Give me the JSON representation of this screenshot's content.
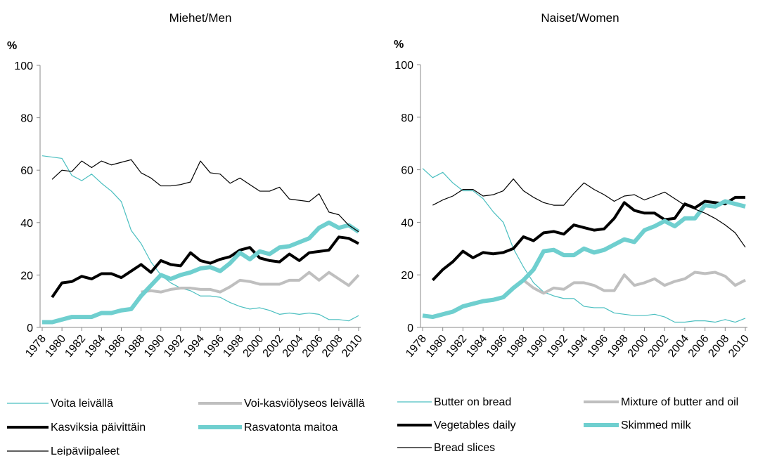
{
  "chart_data": [
    {
      "type": "line",
      "title": "Miehet/Men",
      "y_label": "%",
      "x": [
        1978,
        1979,
        1980,
        1981,
        1982,
        1983,
        1984,
        1985,
        1986,
        1987,
        1988,
        1989,
        1990,
        1991,
        1992,
        1993,
        1994,
        1995,
        1996,
        1997,
        1998,
        1999,
        2000,
        2001,
        2002,
        2003,
        2004,
        2005,
        2006,
        2007,
        2008,
        2009,
        2010
      ],
      "xlim": [
        1978,
        2010
      ],
      "xticks": [
        1978,
        1980,
        1982,
        1984,
        1986,
        1988,
        1990,
        1992,
        1994,
        1996,
        1998,
        2000,
        2002,
        2004,
        2006,
        2008,
        2010
      ],
      "ylim": [
        0,
        100
      ],
      "yticks": [
        0,
        20,
        40,
        60,
        80,
        100
      ],
      "grid": false,
      "series": [
        {
          "name": "Voita leivällä",
          "color": "#4bbfc0",
          "line_width": 1.2,
          "values": [
            65.5,
            65,
            64.5,
            58,
            56,
            58.5,
            55,
            52,
            48,
            37,
            32,
            25,
            20,
            17,
            15,
            14,
            12,
            12,
            11.5,
            9.5,
            8,
            7,
            7.5,
            6.5,
            5,
            5.5,
            5,
            5.5,
            5,
            3,
            3,
            2.5,
            4.5
          ]
        },
        {
          "name": "Voi-kasviölyseos leivällä",
          "color": "#bfbfbf",
          "line_width": 4,
          "values": [
            null,
            null,
            null,
            null,
            null,
            null,
            null,
            null,
            null,
            null,
            13.5,
            14,
            13.5,
            14.5,
            15,
            15,
            14.5,
            14.5,
            13.5,
            15.5,
            18,
            17.5,
            16.5,
            16.5,
            16.5,
            18,
            18,
            21,
            18,
            21,
            18.5,
            16,
            20
          ]
        },
        {
          "name": "Kasviksia  päivittäin",
          "color": "#000000",
          "line_width": 4,
          "values": [
            null,
            11.5,
            17,
            17.5,
            19.5,
            18.5,
            20.5,
            20.5,
            19,
            21.5,
            24,
            21,
            25.5,
            24,
            23.5,
            28.5,
            25.5,
            24.5,
            26,
            27,
            29.5,
            30.5,
            26.5,
            25.5,
            25,
            28,
            25.5,
            28.5,
            29,
            29.5,
            34.5,
            34,
            32
          ]
        },
        {
          "name": "Rasvatonta maitoa",
          "color": "#6fcfcf",
          "line_width": 6,
          "values": [
            2,
            2,
            3,
            4,
            4,
            4,
            5.5,
            5.5,
            6.5,
            7,
            12,
            16,
            20,
            18.5,
            20,
            21,
            22.5,
            23,
            21.5,
            24.5,
            28.5,
            26,
            29,
            28,
            30.5,
            31,
            32.5,
            34,
            38,
            40,
            38,
            39,
            36.5
          ]
        },
        {
          "name": "Leipäviipaleet",
          "color": "#000000",
          "line_width": 1.2,
          "values": [
            null,
            56.5,
            60,
            59.5,
            63.5,
            61,
            63.5,
            62,
            63,
            64,
            59,
            57,
            54,
            54,
            54.5,
            55.5,
            63.5,
            59,
            58.5,
            55,
            57,
            54.5,
            52,
            52,
            53.5,
            49,
            48.5,
            48,
            51,
            44,
            43,
            39,
            36.5
          ]
        }
      ]
    },
    {
      "type": "line",
      "title": "Naiset/Women",
      "y_label": "%",
      "x": [
        1978,
        1979,
        1980,
        1981,
        1982,
        1983,
        1984,
        1985,
        1986,
        1987,
        1988,
        1989,
        1990,
        1991,
        1992,
        1993,
        1994,
        1995,
        1996,
        1997,
        1998,
        1999,
        2000,
        2001,
        2002,
        2003,
        2004,
        2005,
        2006,
        2007,
        2008,
        2009,
        2010
      ],
      "xlim": [
        1978,
        2010
      ],
      "xticks": [
        1978,
        1980,
        1982,
        1984,
        1986,
        1988,
        1990,
        1992,
        1994,
        1996,
        1998,
        2000,
        2002,
        2004,
        2006,
        2008,
        2010
      ],
      "ylim": [
        0,
        100
      ],
      "yticks": [
        0,
        20,
        40,
        60,
        80,
        100
      ],
      "grid": false,
      "series": [
        {
          "name": "Butter on bread",
          "color": "#4bbfc0",
          "line_width": 1.2,
          "values": [
            60.5,
            57,
            59,
            55,
            52,
            52,
            49,
            44,
            40,
            30,
            23,
            17,
            13.5,
            12,
            11,
            11,
            8,
            7.5,
            7.5,
            5.5,
            5,
            4.5,
            4.5,
            5,
            4,
            2,
            2,
            2.5,
            2.5,
            2,
            3,
            2,
            3.5
          ]
        },
        {
          "name": "Mixture of butter and oil",
          "color": "#bfbfbf",
          "line_width": 4,
          "values": [
            null,
            null,
            null,
            null,
            null,
            null,
            null,
            null,
            null,
            null,
            18,
            15,
            13,
            15,
            14.5,
            17,
            17,
            16,
            14,
            14,
            20,
            16,
            17,
            18.5,
            16,
            17.5,
            18.5,
            21,
            20.5,
            21,
            19.5,
            16,
            18
          ]
        },
        {
          "name": "Vegetables daily",
          "color": "#000000",
          "line_width": 4,
          "values": [
            null,
            18,
            22,
            25,
            29,
            26.5,
            28.5,
            28,
            28.5,
            30,
            34.5,
            33,
            36,
            36.5,
            35.5,
            39,
            38,
            37,
            37.5,
            41.5,
            47.5,
            44.5,
            43.5,
            43.5,
            41,
            41.5,
            47,
            45.5,
            48,
            47.5,
            47,
            49.5,
            49.5
          ]
        },
        {
          "name": "Skimmed milk",
          "color": "#6fcfcf",
          "line_width": 6,
          "values": [
            4.5,
            4,
            5,
            6,
            8,
            9,
            10,
            10.5,
            11.5,
            15,
            18,
            22,
            29,
            29.5,
            27.5,
            27.5,
            30,
            28.5,
            29.5,
            31.5,
            33.5,
            32.5,
            37,
            38.5,
            40.5,
            38.5,
            41.5,
            41.5,
            46.5,
            46,
            48,
            47,
            46
          ]
        },
        {
          "name": "Bread slices",
          "color": "#000000",
          "line_width": 1.2,
          "values": [
            null,
            46.5,
            48.5,
            50,
            52.5,
            52.5,
            50,
            50.5,
            52,
            56.5,
            52,
            49.5,
            47.5,
            46.5,
            46.5,
            51,
            55,
            52.5,
            50.5,
            48,
            50,
            50.5,
            48.5,
            50,
            51.5,
            49,
            46.5,
            45,
            43.5,
            41.5,
            39,
            36,
            30.5
          ]
        }
      ]
    }
  ]
}
